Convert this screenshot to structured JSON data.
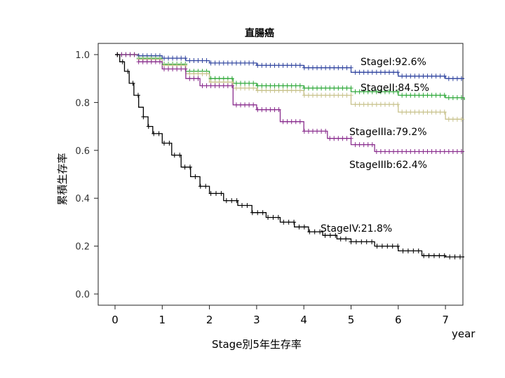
{
  "chart_data": {
    "type": "line",
    "title": "直腸癌",
    "xlabel": "Stage別5年生存率",
    "ylabel": "累積生存率",
    "x_unit": "year",
    "xlim": [
      0,
      7.4
    ],
    "ylim": [
      0,
      1.0
    ],
    "x_ticks": [
      "0",
      "1",
      "2",
      "3",
      "4",
      "5",
      "6",
      "7"
    ],
    "y_ticks": [
      "0.0",
      "0.2",
      "0.4",
      "0.6",
      "0.8",
      "1.0"
    ],
    "grid": false,
    "series": [
      {
        "name": "StageI",
        "annotation": "StageI:92.6%",
        "color": "#3347A0",
        "x": [
          0,
          0.5,
          1,
          1.5,
          2,
          3,
          4,
          5,
          6,
          7,
          7.4
        ],
        "y": [
          1.0,
          0.995,
          0.985,
          0.975,
          0.965,
          0.955,
          0.945,
          0.926,
          0.91,
          0.9,
          0.9
        ]
      },
      {
        "name": "StageII",
        "annotation": "StageII:84.5%",
        "color": "#2FA83A",
        "x": [
          0,
          0.5,
          1,
          1.5,
          2,
          2.5,
          3,
          4,
          5,
          6,
          7,
          7.4
        ],
        "y": [
          1.0,
          0.985,
          0.96,
          0.93,
          0.9,
          0.88,
          0.87,
          0.86,
          0.845,
          0.83,
          0.82,
          0.81
        ]
      },
      {
        "name": "StageIIIa",
        "annotation": "StageIIIa:79.2%",
        "color": "#C8C28C",
        "x": [
          0,
          0.5,
          1,
          1.5,
          2,
          2.5,
          3,
          4,
          5,
          6,
          7,
          7.4
        ],
        "y": [
          1.0,
          0.98,
          0.955,
          0.92,
          0.885,
          0.86,
          0.85,
          0.83,
          0.792,
          0.76,
          0.73,
          0.73
        ]
      },
      {
        "name": "StageIIIb",
        "annotation": "StageIIIb:62.4%",
        "color": "#8A2E8E",
        "x": [
          0,
          0.5,
          1,
          1.5,
          1.8,
          2.5,
          3,
          3.5,
          4,
          4.5,
          5,
          5.5,
          6,
          7,
          7.4
        ],
        "y": [
          1.0,
          0.97,
          0.94,
          0.9,
          0.87,
          0.79,
          0.77,
          0.72,
          0.68,
          0.65,
          0.624,
          0.595,
          0.595,
          0.595,
          0.595
        ]
      },
      {
        "name": "StageIV",
        "annotation": "StageIV:21.8%",
        "color": "#000000",
        "x": [
          0,
          0.1,
          0.2,
          0.3,
          0.4,
          0.5,
          0.6,
          0.7,
          0.8,
          1.0,
          1.2,
          1.4,
          1.6,
          1.8,
          2.0,
          2.3,
          2.6,
          2.9,
          3.2,
          3.5,
          3.8,
          4.1,
          4.4,
          4.7,
          5.0,
          5.5,
          6.0,
          6.5,
          7.0,
          7.4
        ],
        "y": [
          1.0,
          0.97,
          0.93,
          0.88,
          0.83,
          0.78,
          0.74,
          0.7,
          0.67,
          0.63,
          0.58,
          0.53,
          0.49,
          0.45,
          0.42,
          0.39,
          0.37,
          0.34,
          0.32,
          0.3,
          0.28,
          0.26,
          0.245,
          0.23,
          0.218,
          0.2,
          0.18,
          0.16,
          0.155,
          0.155
        ]
      }
    ]
  }
}
